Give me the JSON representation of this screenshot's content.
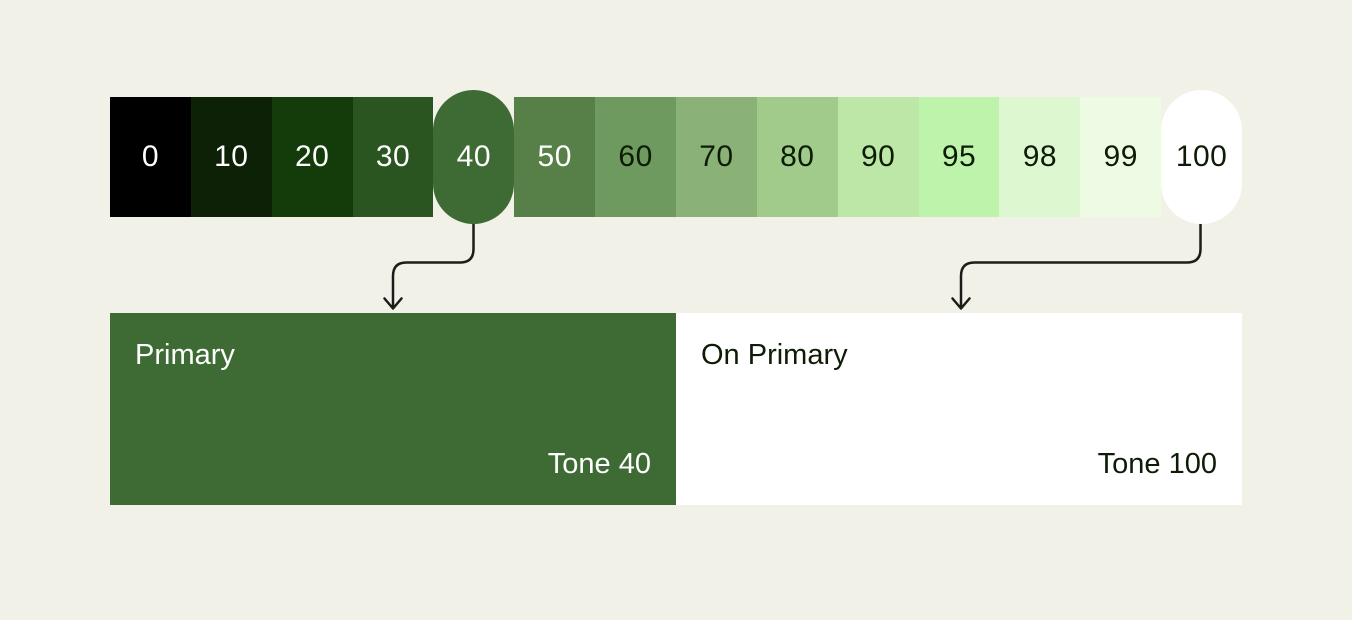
{
  "background_color": "#f2f1e8",
  "text_colors": {
    "light": "#ffffff",
    "dark": "#0e1c07"
  },
  "arrow_color": "#1c1c1a",
  "tonal_strip": {
    "tones": [
      {
        "label": "0",
        "color": "#000000",
        "text_style": "light",
        "pill": false
      },
      {
        "label": "10",
        "color": "#0c2106",
        "text_style": "light",
        "pill": false
      },
      {
        "label": "20",
        "color": "#143c0a",
        "text_style": "light",
        "pill": false
      },
      {
        "label": "30",
        "color": "#2a5521",
        "text_style": "light",
        "pill": false
      },
      {
        "label": "40",
        "color": "#3e6b34",
        "text_style": "light",
        "pill": true
      },
      {
        "label": "50",
        "color": "#568047",
        "text_style": "light",
        "pill": false
      },
      {
        "label": "60",
        "color": "#6e9a5f",
        "text_style": "dark",
        "pill": false
      },
      {
        "label": "70",
        "color": "#8ab276",
        "text_style": "dark",
        "pill": false
      },
      {
        "label": "80",
        "color": "#a0cb8a",
        "text_style": "dark",
        "pill": false
      },
      {
        "label": "90",
        "color": "#bde7a7",
        "text_style": "dark",
        "pill": false
      },
      {
        "label": "95",
        "color": "#bdf3ab",
        "text_style": "dark",
        "pill": false
      },
      {
        "label": "98",
        "color": "#ddf7d0",
        "text_style": "dark",
        "pill": false
      },
      {
        "label": "99",
        "color": "#eefbe4",
        "text_style": "dark",
        "pill": false
      },
      {
        "label": "100",
        "color": "#ffffff",
        "text_style": "dark",
        "pill": true
      }
    ]
  },
  "swatches": [
    {
      "role_label": "Primary",
      "tone_label": "Tone 40",
      "color": "#3e6b34",
      "text_style": "light"
    },
    {
      "role_label": "On Primary",
      "tone_label": "Tone 100",
      "color": "#ffffff",
      "text_style": "dark"
    }
  ],
  "connections": [
    {
      "from_tone": "40",
      "to_role": "Primary"
    },
    {
      "from_tone": "100",
      "to_role": "On Primary"
    }
  ]
}
